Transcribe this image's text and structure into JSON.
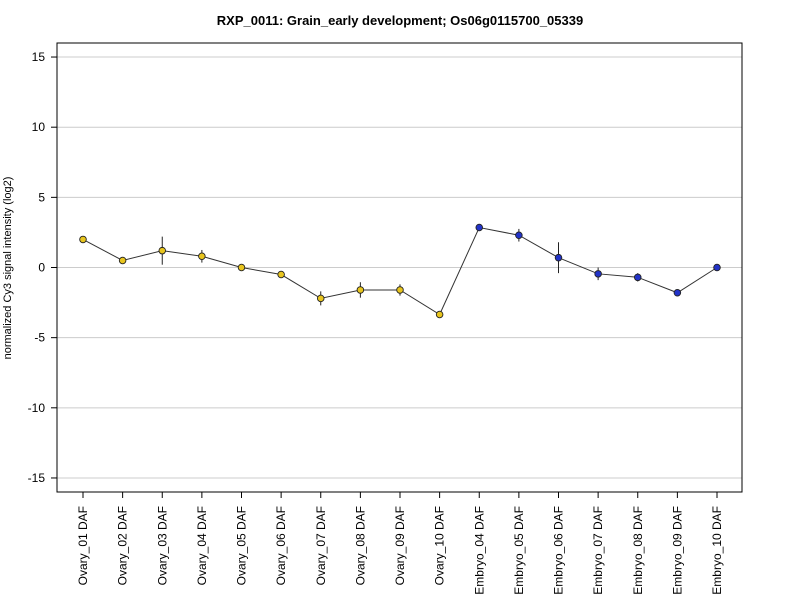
{
  "chart_data": {
    "type": "line",
    "title": "RXP_0011: Grain_early development; Os06g0115700_05339",
    "ylabel": "normalized Cy3 signal intensity (log2)",
    "xlabel": "",
    "ylim": [
      -16,
      16
    ],
    "yticks": [
      15,
      10,
      5,
      0,
      -5,
      -10,
      -15
    ],
    "grid": "horizontal",
    "categories": [
      "Ovary_01 DAF",
      "Ovary_02 DAF",
      "Ovary_03 DAF",
      "Ovary_04 DAF",
      "Ovary_05 DAF",
      "Ovary_06 DAF",
      "Ovary_07 DAF",
      "Ovary_08 DAF",
      "Ovary_09 DAF",
      "Ovary_10 DAF",
      "Embryo_04 DAF",
      "Embryo_05 DAF",
      "Embryo_06 DAF",
      "Embryo_07 DAF",
      "Embryo_08 DAF",
      "Embryo_09 DAF",
      "Embryo_10 DAF"
    ],
    "values": [
      2.0,
      0.5,
      1.2,
      0.8,
      0.0,
      -0.5,
      -2.2,
      -1.6,
      -1.6,
      -3.35,
      2.85,
      2.3,
      0.7,
      -0.45,
      -0.7,
      -1.8,
      0.0
    ],
    "errors": [
      0.15,
      0.1,
      1.0,
      0.45,
      0.1,
      0.15,
      0.5,
      0.55,
      0.4,
      0.15,
      0.1,
      0.45,
      1.1,
      0.45,
      0.3,
      0.1,
      0.05
    ],
    "point_colors": [
      "#e8c51e",
      "#e8c51e",
      "#e8c51e",
      "#e8c51e",
      "#e8c51e",
      "#e8c51e",
      "#e8c51e",
      "#e8c51e",
      "#e8c51e",
      "#e8c51e",
      "#2233c8",
      "#2233c8",
      "#2233c8",
      "#2233c8",
      "#2233c8",
      "#2233c8",
      "#2233c8"
    ],
    "line_color": "#333333",
    "grid_color": "#cccccc"
  }
}
